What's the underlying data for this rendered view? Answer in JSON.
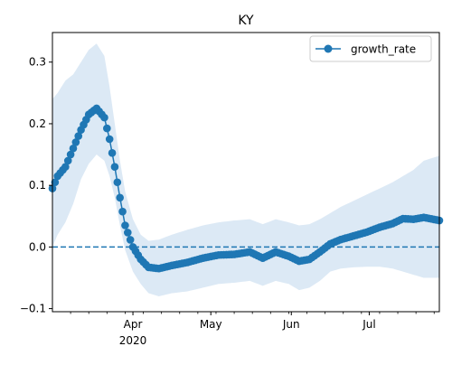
{
  "chart_data": {
    "type": "line",
    "title": "KY",
    "xlabel": "",
    "ylabel": "",
    "xlim": [
      "2020-03-01",
      "2020-07-28"
    ],
    "ylim": [
      -0.105,
      0.348
    ],
    "yticks": [
      -0.1,
      0.0,
      0.1,
      0.2,
      0.3
    ],
    "ytick_labels": [
      "−0.1",
      "0.0",
      "0.1",
      "0.2",
      "0.3"
    ],
    "xticks": [
      {
        "date": "2020-04-01",
        "label": "Apr",
        "sublabel": "2020"
      },
      {
        "date": "2020-05-01",
        "label": "May",
        "sublabel": ""
      },
      {
        "date": "2020-06-01",
        "label": "Jun",
        "sublabel": ""
      },
      {
        "date": "2020-07-01",
        "label": "Jul",
        "sublabel": ""
      }
    ],
    "x_minor_tick_dates": [
      "2020-03-08",
      "2020-03-15",
      "2020-03-22",
      "2020-03-29",
      "2020-04-05",
      "2020-04-12",
      "2020-04-19",
      "2020-04-26",
      "2020-05-03",
      "2020-05-10",
      "2020-05-17",
      "2020-05-24",
      "2020-05-31",
      "2020-06-07",
      "2020-06-14",
      "2020-06-21",
      "2020-06-28",
      "2020-07-05",
      "2020-07-12",
      "2020-07-19",
      "2020-07-26"
    ],
    "reference_line": {
      "y": 0.0,
      "style": "dashed",
      "color": "#1f77b4"
    },
    "legend": {
      "position": "top-right",
      "entries": [
        "growth_rate"
      ]
    },
    "grid": false,
    "series": [
      {
        "name": "growth_rate",
        "color": "#1f77b4",
        "marker": "circle",
        "band_color": "#dce9f5",
        "anchors": [
          {
            "date": "2020-03-01",
            "y": 0.095,
            "lower": 0.0,
            "upper": 0.24
          },
          {
            "date": "2020-03-03",
            "y": 0.115,
            "lower": 0.02,
            "upper": 0.25
          },
          {
            "date": "2020-03-06",
            "y": 0.13,
            "lower": 0.04,
            "upper": 0.27
          },
          {
            "date": "2020-03-09",
            "y": 0.16,
            "lower": 0.07,
            "upper": 0.28
          },
          {
            "date": "2020-03-12",
            "y": 0.19,
            "lower": 0.11,
            "upper": 0.3
          },
          {
            "date": "2020-03-15",
            "y": 0.215,
            "lower": 0.135,
            "upper": 0.32
          },
          {
            "date": "2020-03-18",
            "y": 0.225,
            "lower": 0.15,
            "upper": 0.33
          },
          {
            "date": "2020-03-21",
            "y": 0.21,
            "lower": 0.14,
            "upper": 0.31
          },
          {
            "date": "2020-03-23",
            "y": 0.175,
            "lower": 0.115,
            "upper": 0.26
          },
          {
            "date": "2020-03-25",
            "y": 0.13,
            "lower": 0.08,
            "upper": 0.2
          },
          {
            "date": "2020-03-27",
            "y": 0.08,
            "lower": 0.035,
            "upper": 0.14
          },
          {
            "date": "2020-03-29",
            "y": 0.035,
            "lower": -0.005,
            "upper": 0.09
          },
          {
            "date": "2020-04-01",
            "y": 0.0,
            "lower": -0.04,
            "upper": 0.045
          },
          {
            "date": "2020-04-04",
            "y": -0.02,
            "lower": -0.06,
            "upper": 0.02
          },
          {
            "date": "2020-04-07",
            "y": -0.033,
            "lower": -0.075,
            "upper": 0.01
          },
          {
            "date": "2020-04-11",
            "y": -0.035,
            "lower": -0.08,
            "upper": 0.012
          },
          {
            "date": "2020-04-16",
            "y": -0.03,
            "lower": -0.075,
            "upper": 0.02
          },
          {
            "date": "2020-04-22",
            "y": -0.025,
            "lower": -0.072,
            "upper": 0.028
          },
          {
            "date": "2020-04-28",
            "y": -0.018,
            "lower": -0.066,
            "upper": 0.035
          },
          {
            "date": "2020-05-04",
            "y": -0.013,
            "lower": -0.06,
            "upper": 0.04
          },
          {
            "date": "2020-05-10",
            "y": -0.012,
            "lower": -0.058,
            "upper": 0.043
          },
          {
            "date": "2020-05-16",
            "y": -0.008,
            "lower": -0.055,
            "upper": 0.045
          },
          {
            "date": "2020-05-21",
            "y": -0.018,
            "lower": -0.063,
            "upper": 0.037
          },
          {
            "date": "2020-05-26",
            "y": -0.008,
            "lower": -0.055,
            "upper": 0.045
          },
          {
            "date": "2020-05-31",
            "y": -0.015,
            "lower": -0.06,
            "upper": 0.04
          },
          {
            "date": "2020-06-04",
            "y": -0.023,
            "lower": -0.07,
            "upper": 0.035
          },
          {
            "date": "2020-06-08",
            "y": -0.02,
            "lower": -0.066,
            "upper": 0.037
          },
          {
            "date": "2020-06-12",
            "y": -0.008,
            "lower": -0.055,
            "upper": 0.045
          },
          {
            "date": "2020-06-16",
            "y": 0.005,
            "lower": -0.04,
            "upper": 0.055
          },
          {
            "date": "2020-06-20",
            "y": 0.012,
            "lower": -0.035,
            "upper": 0.065
          },
          {
            "date": "2020-06-25",
            "y": 0.018,
            "lower": -0.033,
            "upper": 0.075
          },
          {
            "date": "2020-06-30",
            "y": 0.024,
            "lower": -0.032,
            "upper": 0.085
          },
          {
            "date": "2020-07-05",
            "y": 0.032,
            "lower": -0.032,
            "upper": 0.095
          },
          {
            "date": "2020-07-10",
            "y": 0.038,
            "lower": -0.035,
            "upper": 0.105
          },
          {
            "date": "2020-07-14",
            "y": 0.046,
            "lower": -0.04,
            "upper": 0.115
          },
          {
            "date": "2020-07-18",
            "y": 0.045,
            "lower": -0.045,
            "upper": 0.125
          },
          {
            "date": "2020-07-22",
            "y": 0.048,
            "lower": -0.05,
            "upper": 0.14
          },
          {
            "date": "2020-07-28",
            "y": 0.043,
            "lower": -0.05,
            "upper": 0.148
          }
        ]
      }
    ]
  }
}
